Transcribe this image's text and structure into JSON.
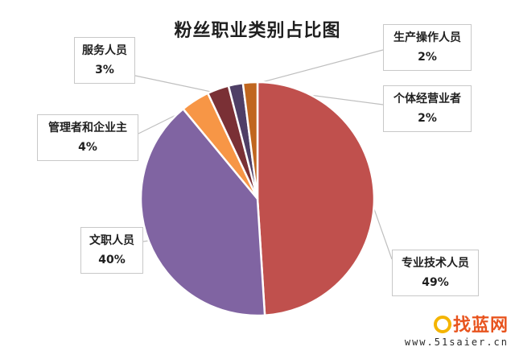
{
  "chart_data": {
    "type": "pie",
    "title": "粉丝职业类别占比图",
    "slices": [
      {
        "label": "专业技术人员",
        "value": 49,
        "pct_text": "49%",
        "color": "#c0504d"
      },
      {
        "label": "文职人员",
        "value": 40,
        "pct_text": "40%",
        "color": "#8064a2"
      },
      {
        "label": "管理者和企业主",
        "value": 4,
        "pct_text": "4%",
        "color": "#f79646"
      },
      {
        "label": "服务人员",
        "value": 3,
        "pct_text": "3%",
        "color": "#7a3035"
      },
      {
        "label": "生产操作人员",
        "value": 2,
        "pct_text": "2%",
        "color": "#4f3f66"
      },
      {
        "label": "个体经营业者",
        "value": 2,
        "pct_text": "2%",
        "color": "#c0661f"
      }
    ],
    "start_angle": "12 o'clock",
    "direction": "clockwise",
    "legend": "none"
  },
  "watermark": {
    "name": "找蓝网",
    "url": "www.51saier.cn"
  }
}
